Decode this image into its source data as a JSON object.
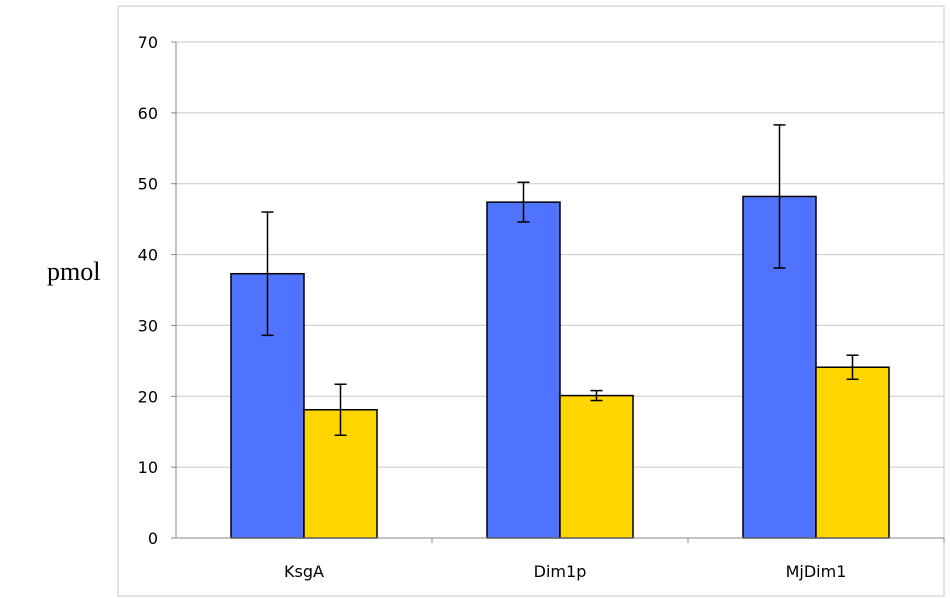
{
  "chart_data": {
    "type": "bar",
    "ylabel": "pmol",
    "ylim": [
      0,
      70
    ],
    "yticks": [
      0,
      10,
      20,
      30,
      40,
      50,
      60,
      70
    ],
    "categories": [
      "KsgA",
      "Dim1p",
      "MjDim1"
    ],
    "grid": true,
    "series": [
      {
        "color": "#4f73ff",
        "values": [
          37.3,
          47.4,
          48.2
        ],
        "errors": [
          8.7,
          2.8,
          10.1
        ]
      },
      {
        "color": "#ffd600",
        "values": [
          18.1,
          20.1,
          24.1
        ],
        "errors": [
          3.6,
          0.7,
          1.7
        ]
      }
    ]
  }
}
